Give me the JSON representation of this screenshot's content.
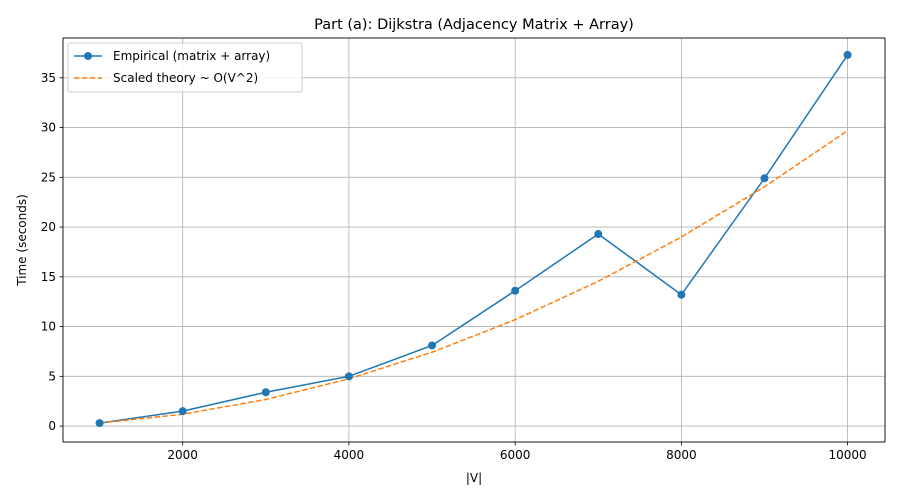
{
  "chart_data": {
    "type": "line",
    "title": "Part (a): Dijkstra (Adjacency Matrix + Array)",
    "xlabel": "|V|",
    "ylabel": "Time (seconds)",
    "xlim": [
      560,
      10450
    ],
    "ylim": [
      -1.6,
      39.0
    ],
    "xticks": [
      2000,
      4000,
      6000,
      8000,
      10000
    ],
    "yticks": [
      0,
      5,
      10,
      15,
      20,
      25,
      30,
      35
    ],
    "grid": true,
    "legend_position": "top-left",
    "x": [
      1000,
      2000,
      3000,
      4000,
      5000,
      6000,
      7000,
      8000,
      9000,
      10000
    ],
    "series": [
      {
        "name": "Empirical (matrix + array)",
        "color": "#1f77b4",
        "style": "solid-with-circle-markers",
        "values": [
          0.3,
          1.5,
          3.4,
          5.0,
          8.1,
          13.6,
          19.3,
          13.2,
          24.9,
          37.3
        ]
      },
      {
        "name": "Scaled theory ~ O(V^2)",
        "color": "#ff7f0e",
        "style": "dashed",
        "values": [
          0.3,
          1.19,
          2.67,
          4.75,
          7.42,
          10.69,
          14.55,
          19.0,
          24.05,
          29.69
        ]
      }
    ]
  }
}
